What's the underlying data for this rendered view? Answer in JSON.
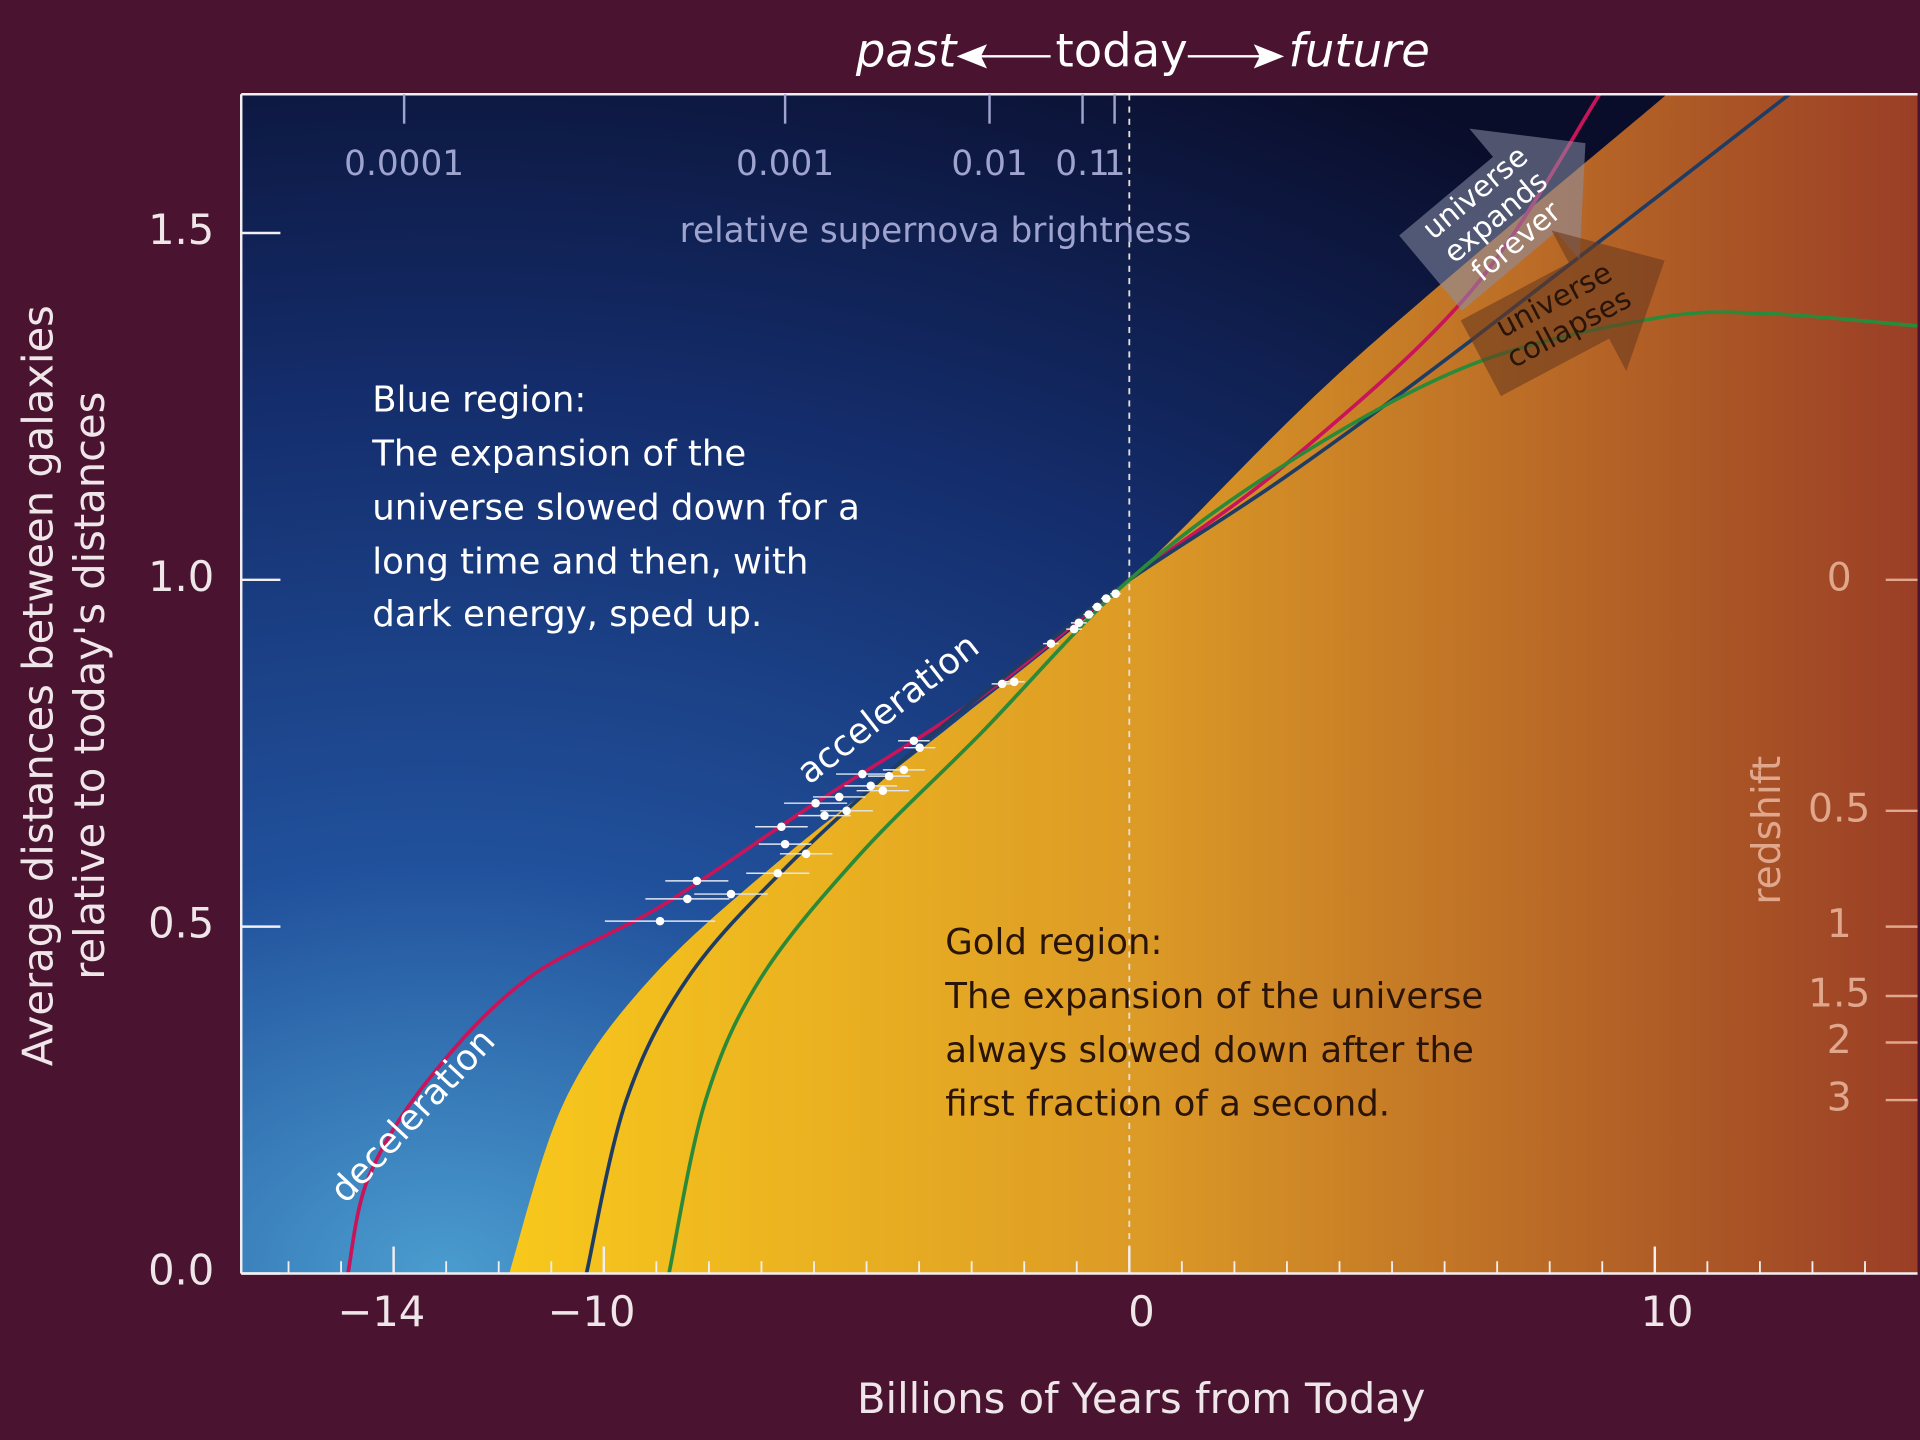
{
  "chart_data": {
    "type": "line",
    "header": [
      "past",
      "today",
      "future"
    ],
    "xlabel": "Billions of Years from Today",
    "ylabel": [
      "Average distances between galaxies",
      "relative to today's distances"
    ],
    "xlim": [
      -16.9,
      15
    ],
    "ylim": [
      0,
      1.7
    ],
    "xticks": [
      {
        "value": -14,
        "label": "−14"
      },
      {
        "value": -10,
        "label": "−10"
      },
      0,
      10
    ],
    "xminorticks": [
      -16,
      -15,
      -14,
      -13,
      -12,
      -11,
      -10,
      -9,
      -8,
      -7,
      -6,
      -5,
      -4,
      -3,
      -2,
      -1,
      0,
      1,
      2,
      3,
      4,
      5,
      6,
      7,
      8,
      9,
      10,
      11,
      12,
      13,
      14
    ],
    "yticks": [
      {
        "value": 0,
        "label": "0.0"
      },
      0.5,
      {
        "value": 1,
        "label": "1.0"
      },
      1.5
    ],
    "brightness": {
      "label": "relative supernova brightness",
      "ticks": [
        0.0001,
        0.001,
        0.01,
        0.1,
        1
      ],
      "x": [
        -13.8,
        -6.55,
        -2.66,
        -0.89,
        -0.28
      ]
    },
    "redshift": {
      "label": "redshift",
      "ticks": [
        0,
        0.5,
        1,
        1.5,
        2,
        3
      ],
      "y": [
        1,
        0.667,
        0.5,
        0.4,
        0.333,
        0.25
      ]
    },
    "gold_region": {
      "color": "#e8a822",
      "x": [
        -11.8,
        -10.75,
        -9.11,
        -6.55,
        -3.29,
        0,
        4.17,
        10.23
      ],
      "values": [
        0,
        0.248,
        0.425,
        0.602,
        0.796,
        1,
        1.31,
        1.7
      ]
    },
    "series": [
      {
        "color": "#c8155a",
        "x": [
          -14.87,
          -14.47,
          -13.3,
          -11.45,
          -8.88,
          -6.08,
          -2.82,
          0,
          3.0,
          6.5,
          8.95
        ],
        "values": [
          0,
          0.14,
          0.283,
          0.425,
          0.531,
          0.673,
          0.832,
          1,
          1.168,
          1.416,
          1.7
        ]
      },
      {
        "color": "#1f3d63",
        "x": [
          -10.33,
          -9.58,
          -8.41,
          -6.55,
          -3.99,
          -1.66,
          0,
          3.0,
          6.5,
          12.56
        ],
        "values": [
          0,
          0.248,
          0.425,
          0.584,
          0.761,
          0.903,
          1,
          1.15,
          1.345,
          1.7
        ]
      },
      {
        "color": "#2b8a3a",
        "x": [
          -8.76,
          -8.07,
          -7.02,
          -5.15,
          -2.82,
          0,
          3.0,
          6.5,
          10,
          12.1,
          15.0
        ],
        "values": [
          0,
          0.248,
          0.425,
          0.602,
          0.779,
          1,
          1.168,
          1.31,
          1.377,
          1.384,
          1.366
        ]
      }
    ],
    "supernovae": {
      "x": [
        -8.93,
        -8.41,
        -8.23,
        -7.58,
        -6.69,
        -6.55,
        -6.15,
        -6.62,
        -5.97,
        -5.8,
        -5.52,
        -5.38,
        -5.08,
        -4.92,
        -4.69,
        -4.57,
        -4.29,
        -4.1,
        -3.99,
        -2.42,
        -2.19,
        -1.49,
        -1.05,
        -0.96,
        -0.77,
        -0.61,
        -0.44,
        -0.26
      ],
      "values": [
        0.508,
        0.54,
        0.566,
        0.547,
        0.577,
        0.619,
        0.605,
        0.644,
        0.678,
        0.66,
        0.687,
        0.667,
        0.72,
        0.703,
        0.696,
        0.717,
        0.726,
        0.768,
        0.758,
        0.85,
        0.853,
        0.908,
        0.929,
        0.938,
        0.95,
        0.961,
        0.973,
        0.98
      ],
      "x_err": [
        1.05,
        0.8,
        0.6,
        0.7,
        0.6,
        0.5,
        0.5,
        0.5,
        0.6,
        0.5,
        0.5,
        0.5,
        0.5,
        0.5,
        0.5,
        0.4,
        0.4,
        0.3,
        0.3,
        0.2,
        0.2,
        0.15,
        0.15,
        0.15,
        0.1,
        0.1,
        0.1,
        0.1
      ]
    },
    "annotations": {
      "deceleration": "deceleration",
      "acceleration": "acceleration",
      "expands": [
        "universe",
        "expands",
        "forever"
      ],
      "collapses": [
        "universe",
        "collapses"
      ]
    },
    "blue_region": {
      "title": "Blue region:",
      "lines": [
        "The expansion of the",
        "universe slowed down for a",
        "long time and then, with",
        "dark energy, sped up."
      ]
    },
    "gold_text": {
      "title": "Gold region:",
      "lines": [
        "The expansion of the universe",
        "always slowed down after the",
        "first fraction of a second."
      ]
    }
  }
}
